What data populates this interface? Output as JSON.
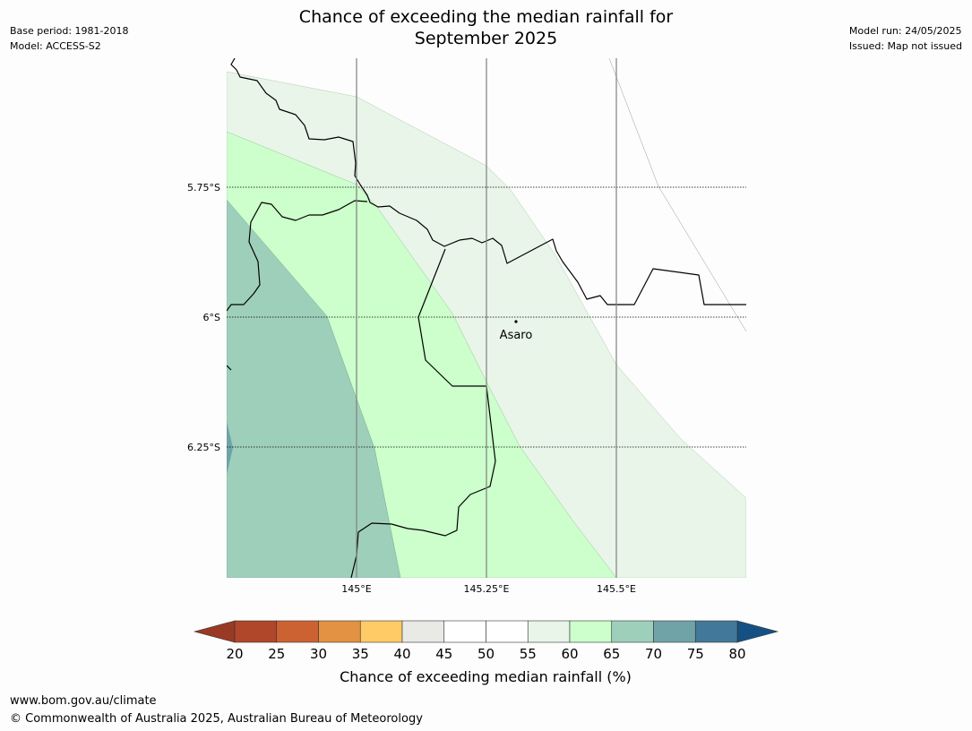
{
  "header": {
    "base_period": "Base period: 1981-2018",
    "model": "Model: ACCESS-S2",
    "model_run": "Model run: 24/05/2025",
    "issued": "Issued: Map not issued",
    "title_line1": "Chance of exceeding the median rainfall for",
    "title_line2": "September 2025"
  },
  "map": {
    "lat_labels": [
      "5.75°S",
      "6°S",
      "6.25°S"
    ],
    "lon_labels": [
      "145°E",
      "145.25°E",
      "145.5°E"
    ],
    "place": {
      "name": "Asaro"
    }
  },
  "colorbar": {
    "label": "Chance of exceeding median rainfall (%)",
    "ticks": [
      "20",
      "25",
      "30",
      "35",
      "40",
      "45",
      "50",
      "55",
      "60",
      "65",
      "70",
      "75",
      "80"
    ],
    "colors": [
      "#b0472a",
      "#cc6232",
      "#e39244",
      "#fecb66",
      "#e9e9e6",
      "#ffffff",
      "#ffffff",
      "#e9f5e9",
      "#ccffcc",
      "#9ecfba",
      "#70a3a7",
      "#42799a"
    ],
    "under_color": "#9a3a24",
    "over_color": "#155085"
  },
  "footer": {
    "url": "www.bom.gov.au/climate",
    "copyright": "© Commonwealth of Australia 2025, Australian Bureau of Meteorology"
  }
}
